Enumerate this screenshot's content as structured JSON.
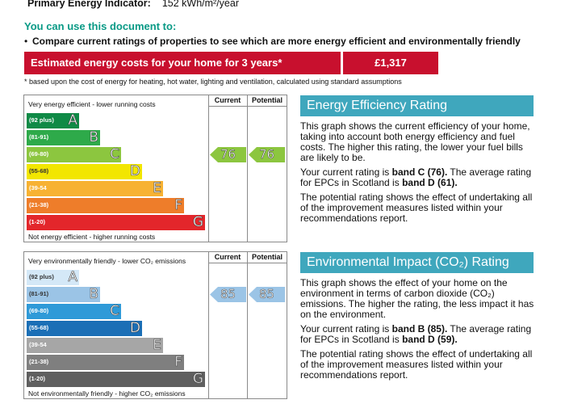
{
  "primary_energy": {
    "label": "Primary Energy Indicator:",
    "value": "152 kWh/m²/year"
  },
  "use_title": "You can use this document to:",
  "bullet": "Compare current ratings of properties to see which are more energy efficient and environmentally friendly",
  "cost": {
    "label": "Estimated energy costs for your home for 3 years*",
    "value": "£1,317"
  },
  "footnote": "* based upon the cost of energy for heating, hot water, lighting and ventilation, calculated using standard assumptions",
  "col_current": "Current",
  "col_potential": "Potential",
  "energy_chart": {
    "top_note": "Very energy efficient - lower running costs",
    "bottom_note": "Not energy efficient - higher running costs",
    "current": "76",
    "potential": "76",
    "current_color": "#8cc63f",
    "potential_color": "#8cc63f",
    "bands": [
      {
        "range": "(92 plus)",
        "letter": "A",
        "color": "#0f8a46"
      },
      {
        "range": "(81-91)",
        "letter": "B",
        "color": "#2eaa4a"
      },
      {
        "range": "(69-80)",
        "letter": "C",
        "color": "#8cc63f"
      },
      {
        "range": "(55-68)",
        "letter": "D",
        "color": "#f2e600"
      },
      {
        "range": "(39-54",
        "letter": "E",
        "color": "#f7b233"
      },
      {
        "range": "(21-38)",
        "letter": "F",
        "color": "#ee7d2a"
      },
      {
        "range": "(1-20)",
        "letter": "G",
        "color": "#e3262b"
      }
    ]
  },
  "env_chart": {
    "top_note": "Very environmentally friendly - lower CO₂ emissions",
    "bottom_note": "Not environmentally friendly - higher CO₂ emissions",
    "current": "85",
    "potential": "85",
    "current_color": "#9bc4e6",
    "potential_color": "#9bc4e6",
    "bands": [
      {
        "range": "(92 plus)",
        "letter": "A",
        "color": "#d4e8f7"
      },
      {
        "range": "(81-91)",
        "letter": "B",
        "color": "#9bc4e6"
      },
      {
        "range": "(69-80)",
        "letter": "C",
        "color": "#2f9ad8"
      },
      {
        "range": "(55-68)",
        "letter": "D",
        "color": "#1b6fb6"
      },
      {
        "range": "(39-54",
        "letter": "E",
        "color": "#a6a6a6"
      },
      {
        "range": "(21-38)",
        "letter": "F",
        "color": "#7f7f7f"
      },
      {
        "range": "(1-20)",
        "letter": "G",
        "color": "#5f5f5f"
      }
    ]
  },
  "energy_panel": {
    "title": "Energy Efficiency Rating",
    "p1": "This graph shows the current efficiency of your home, taking into account both energy efficiency and fuel costs. The higher this rating, the lower your fuel bills are likely to be.",
    "p2_a": "Your current rating is ",
    "p2_b": "band C (76).",
    "p2_c": " The average rating for EPCs in Scotland is ",
    "p2_d": "band D (61).",
    "p3": "The potential rating shows the effect of undertaking all of the improvement measures listed within your recommendations report."
  },
  "env_panel": {
    "title": "Environmental Impact (CO₂) Rating",
    "p1": "This graph shows the effect of your home on the environment in terms of carbon dioxide (CO₂) emissions. The higher the rating, the less impact it has on the environment.",
    "p2_a": "Your current rating is ",
    "p2_b": "band B (85).",
    "p2_c": " The average rating for EPCs in Scotland is ",
    "p2_d": "band D (59).",
    "p3": "The potential rating shows the effect of undertaking all of the improvement measures listed within your recommendations report."
  }
}
